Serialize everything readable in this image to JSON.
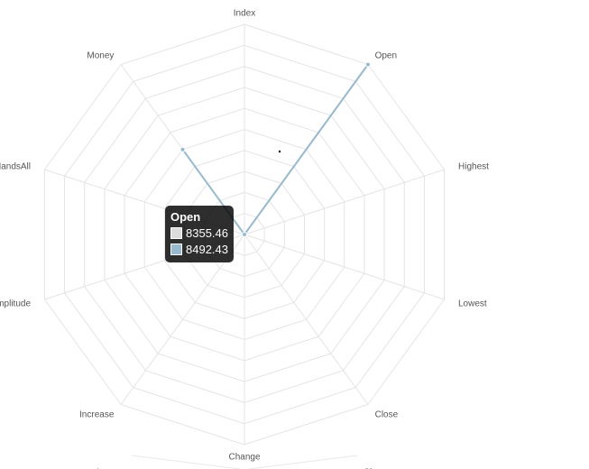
{
  "chart_data": {
    "type": "radar",
    "axes": [
      "Index",
      "Open",
      "Highest",
      "Lowest",
      "Close",
      "Change",
      "Increase",
      "Amplitude",
      "HandsAll",
      "Money"
    ],
    "extra_labels": [
      "Increase",
      "Close"
    ],
    "series": [
      {
        "values": [
          0,
          8355.46,
          0,
          0,
          0,
          0,
          0,
          0,
          0,
          0
        ],
        "color": "#dcdcdc"
      },
      {
        "values": [
          0,
          8492.43,
          0,
          0,
          0,
          0,
          0,
          0,
          0,
          5
        ],
        "color": "#97bbcd"
      }
    ],
    "grid": true,
    "tooltip": {
      "title": "Open",
      "rows": [
        {
          "value": "8355.46",
          "color": "#dcdcdc"
        },
        {
          "value": "8492.43",
          "color": "#97bbcd"
        }
      ]
    }
  }
}
